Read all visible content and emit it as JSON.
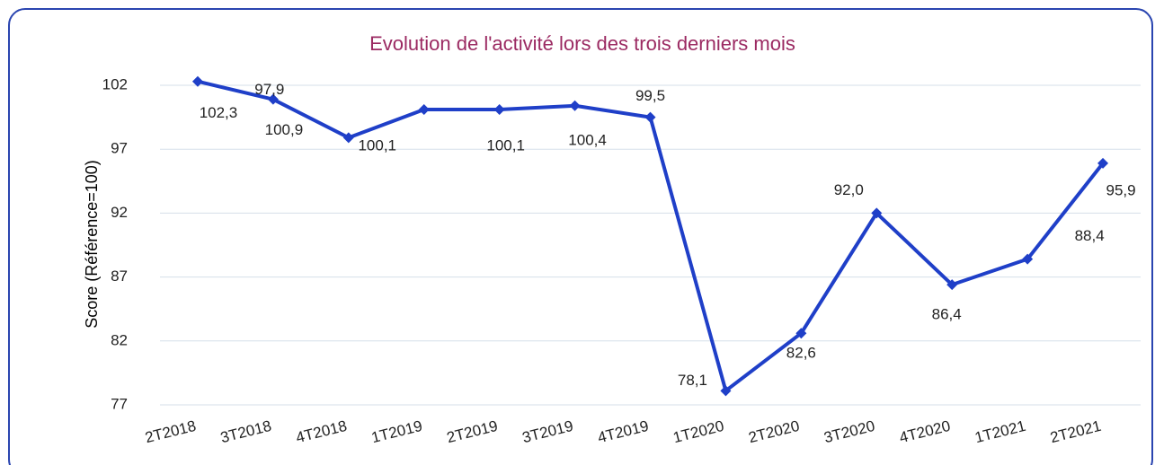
{
  "chart_data": {
    "type": "line",
    "title": "Evolution de l'activité lors des trois derniers mois",
    "y_label": "Score (Référence=100)",
    "categories": [
      "2T2018",
      "3T2018",
      "4T2018",
      "1T2019",
      "2T2019",
      "3T2019",
      "4T2019",
      "1T2020",
      "2T2020",
      "3T2020",
      "4T2020",
      "1T2021",
      "2T2021"
    ],
    "series": [
      {
        "name": "Score",
        "color": "#1f3fc8",
        "values": [
          102.3,
          100.9,
          97.9,
          100.1,
          100.1,
          100.4,
          99.5,
          78.1,
          82.6,
          92.0,
          86.4,
          88.4,
          95.9
        ],
        "value_labels": [
          "102,3",
          "100,9",
          "97,9",
          "100,1",
          "100,1",
          "100,4",
          "99,5",
          "78,1",
          "82,6",
          "92,0",
          "86,4",
          "88,4",
          "95,9"
        ]
      }
    ],
    "ylim": [
      77,
      102
    ],
    "yticks": [
      77,
      82,
      87,
      92,
      97,
      102
    ],
    "grid": true
  }
}
